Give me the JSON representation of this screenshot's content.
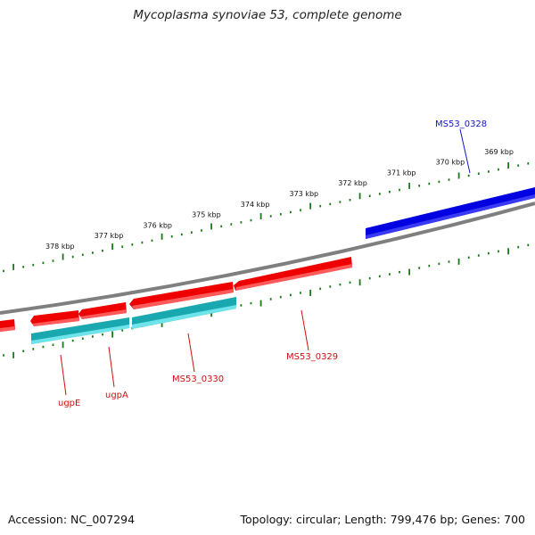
{
  "title": "Mycoplasma synoviae 53, complete genome",
  "footer": {
    "accession": "Accession: NC_007294",
    "topology": "Topology: circular; Length: 799,476 bp; Genes: 700"
  },
  "colors": {
    "backbone": "#7f7f7f",
    "tick": "#1a7a1a",
    "forward_cds": "#0000e0",
    "reverse_cds": "#ee0000",
    "reverse_feature": "#19c0c8",
    "blue_label": "#1515c8",
    "red_label": "#d01010"
  },
  "ruler": {
    "labels": [
      "378 kbp",
      "377 kbp",
      "376 kbp",
      "375 kbp",
      "374 kbp",
      "373 kbp",
      "372 kbp",
      "371 kbp",
      "370 kbp",
      "369 kbp"
    ]
  },
  "genes": {
    "forward": [
      {
        "label": "MS53_0328",
        "strand": "forward"
      }
    ],
    "reverse": [
      {
        "label": "MS53_0329",
        "strand": "reverse"
      },
      {
        "label": "MS53_0330",
        "strand": "reverse"
      },
      {
        "label": "ugpA",
        "strand": "reverse"
      },
      {
        "label": "ugpE",
        "strand": "reverse"
      }
    ]
  }
}
